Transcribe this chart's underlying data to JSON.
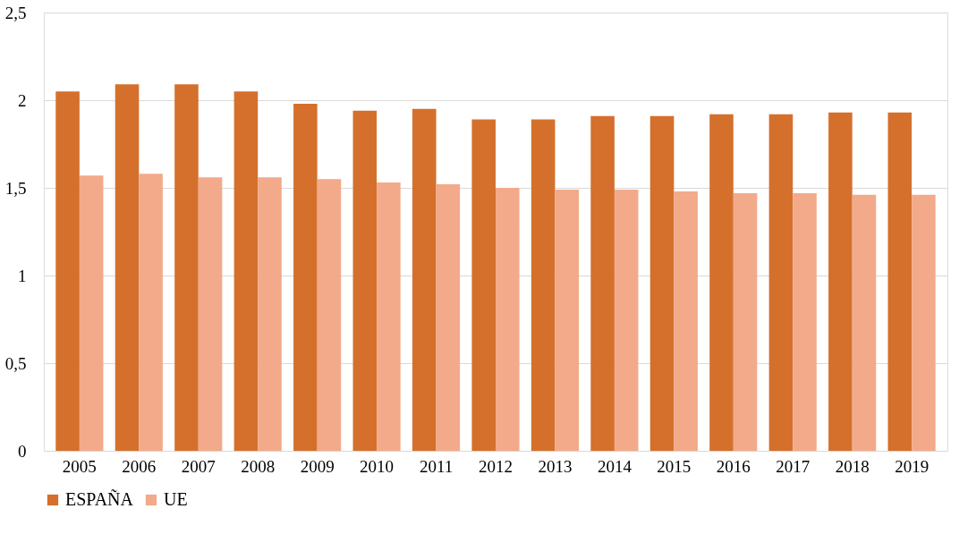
{
  "chart_data": {
    "type": "bar",
    "categories": [
      "2005",
      "2006",
      "2007",
      "2008",
      "2009",
      "2010",
      "2011",
      "2012",
      "2013",
      "2014",
      "2015",
      "2016",
      "2017",
      "2018",
      "2019"
    ],
    "series": [
      {
        "name": "ESPAÑA",
        "color": "#d4702c",
        "values": [
          2.05,
          2.09,
          2.09,
          2.05,
          1.98,
          1.94,
          1.95,
          1.89,
          1.89,
          1.91,
          1.91,
          1.92,
          1.92,
          1.93,
          1.93
        ]
      },
      {
        "name": "UE",
        "color": "#f2aa8a",
        "values": [
          1.57,
          1.58,
          1.56,
          1.56,
          1.55,
          1.53,
          1.52,
          1.5,
          1.49,
          1.49,
          1.48,
          1.47,
          1.47,
          1.46,
          1.46
        ]
      }
    ],
    "ylim": [
      0,
      2.5
    ],
    "yticks": [
      0,
      {
        "value": 0.5,
        "label": "0,5"
      },
      1,
      {
        "value": 1.5,
        "label": "1,5"
      },
      2,
      {
        "value": 2.5,
        "label": "2,5"
      }
    ],
    "grid": "y",
    "legend": "bottom"
  }
}
